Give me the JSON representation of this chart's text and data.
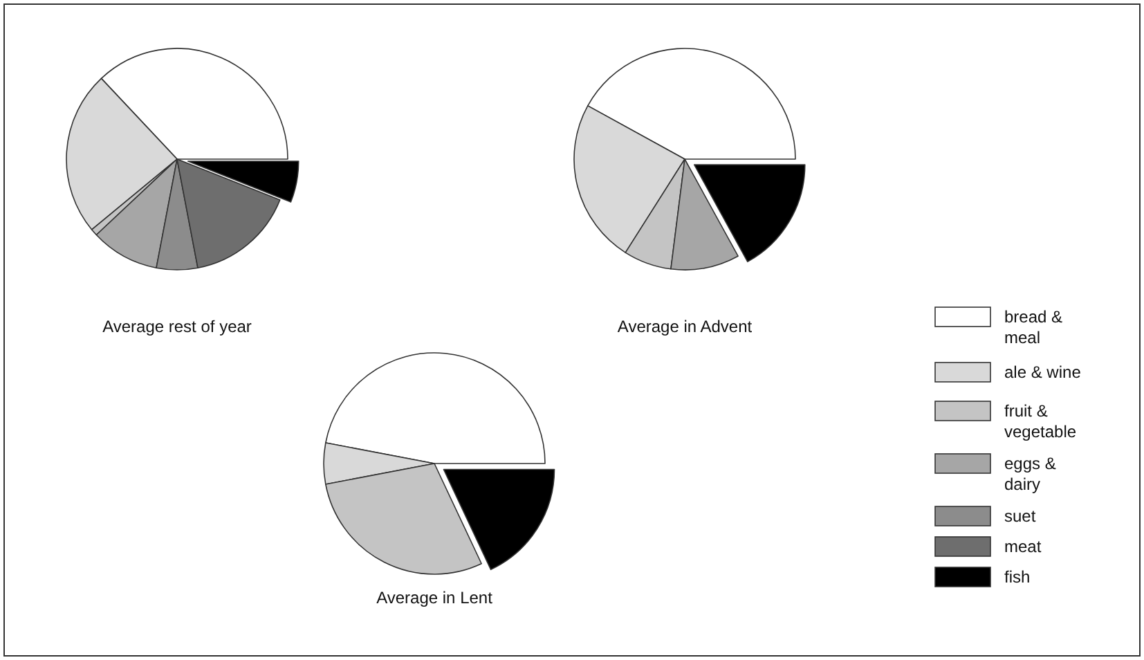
{
  "chart_data": [
    {
      "type": "pie",
      "title": "Average rest of year",
      "categories": [
        "bread & meal",
        "ale & wine",
        "fruit & vegetable",
        "eggs & dairy",
        "suet",
        "meat",
        "fish"
      ],
      "values": [
        37,
        24,
        1,
        10,
        6,
        16,
        6
      ],
      "colors": [
        "#ffffff",
        "#d9d9d9",
        "#c4c4c4",
        "#a6a6a6",
        "#8c8c8c",
        "#6e6e6e",
        "#000000"
      ],
      "legend": "right"
    },
    {
      "type": "pie",
      "title": "Average in Advent",
      "categories": [
        null,
        null,
        null,
        null,
        null,
        null,
        null
      ],
      "values": [
        42,
        24,
        7,
        10,
        0,
        0,
        17
      ],
      "colors": [
        "#ffffff",
        "#d9d9d9",
        "#c4c4c4",
        "#a6a6a6",
        "#8c8c8c",
        "#6e6e6e",
        "#000000"
      ]
    },
    {
      "type": "pie",
      "title": "Average in Lent",
      "categories": [
        null,
        null,
        null,
        null,
        null,
        null,
        null
      ],
      "values": [
        47,
        6,
        29,
        0,
        0,
        0,
        18
      ],
      "colors": [
        "#ffffff",
        "#d9d9d9",
        "#c4c4c4",
        "#a6a6a6",
        "#8c8c8c",
        "#6e6e6e",
        "#000000"
      ]
    }
  ]
}
